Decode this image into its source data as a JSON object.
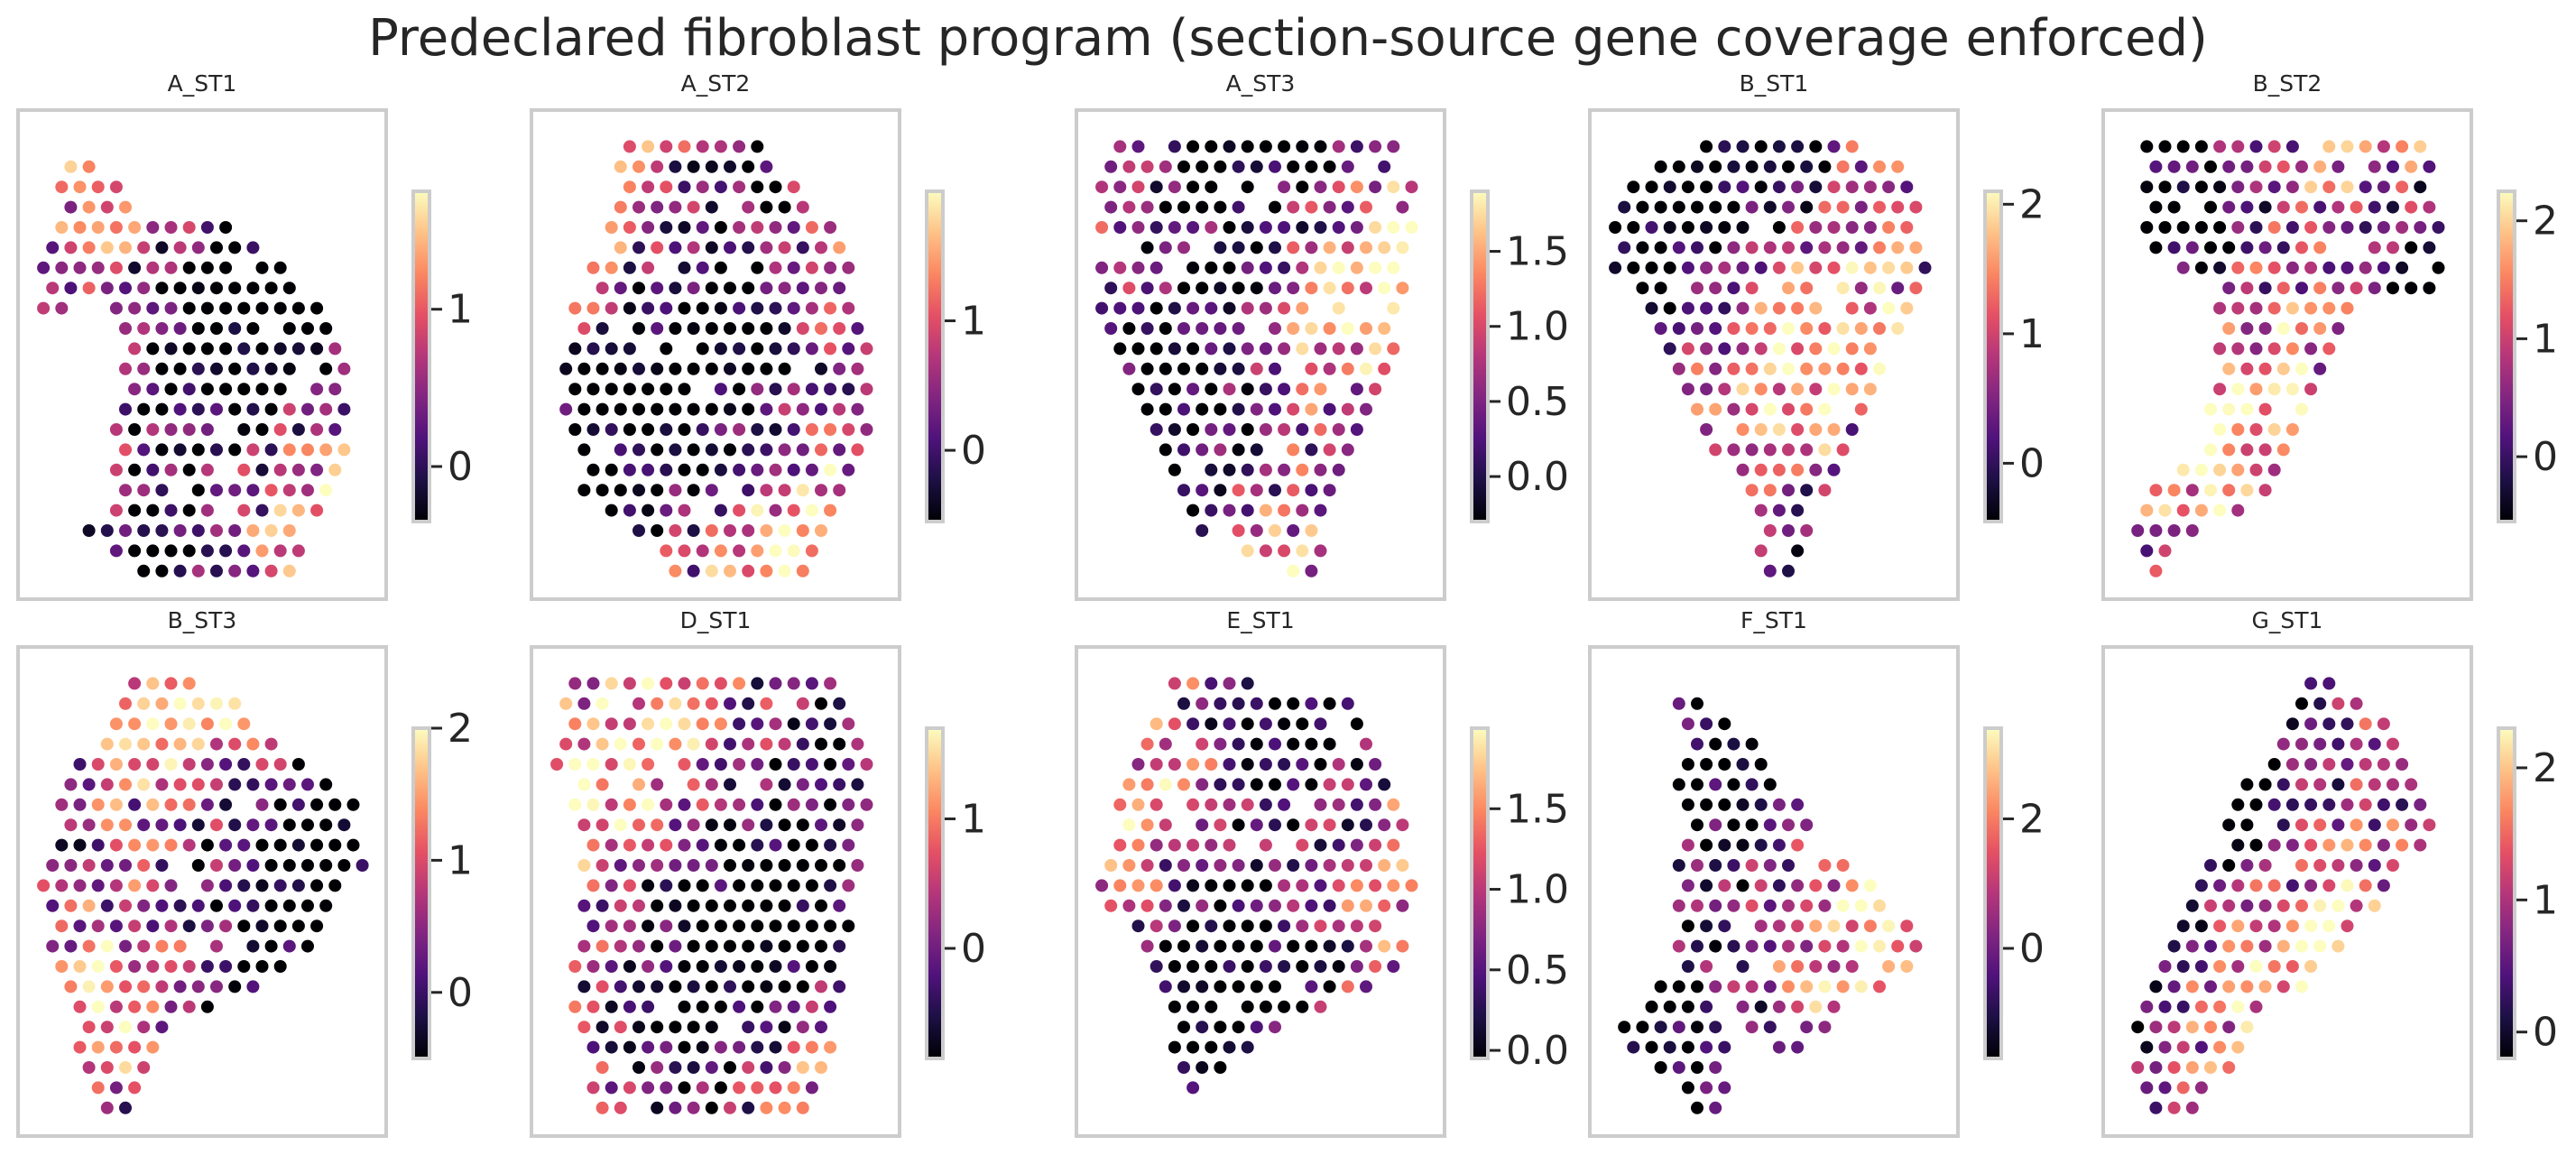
{
  "figure": {
    "title": "Predeclared fibroblast program (section-source gene coverage enforced)"
  },
  "colormap": {
    "name": "magma",
    "stops": [
      "#000004",
      "#1c1044",
      "#4f127b",
      "#812581",
      "#b5367a",
      "#e55064",
      "#fb8761",
      "#fec287",
      "#fcfdbf"
    ]
  },
  "chart_data": [
    {
      "type": "scatter",
      "title": "A_ST1",
      "shape": "A_ST1",
      "clim": [
        -0.35,
        1.75
      ],
      "colorbar_ticks": [
        {
          "value": 0,
          "label": "0"
        },
        {
          "value": 1,
          "label": "1"
        }
      ]
    },
    {
      "type": "scatter",
      "title": "A_ST2",
      "shape": "A_ST2",
      "clim": [
        -0.55,
        2.0
      ],
      "colorbar_ticks": [
        {
          "value": 0,
          "label": "0"
        },
        {
          "value": 1,
          "label": "1"
        }
      ]
    },
    {
      "type": "scatter",
      "title": "A_ST3",
      "shape": "A_ST3",
      "clim": [
        -0.3,
        1.9
      ],
      "colorbar_ticks": [
        {
          "value": 0,
          "label": "0.0"
        },
        {
          "value": 0.5,
          "label": "0.5"
        },
        {
          "value": 1.0,
          "label": "1.0"
        },
        {
          "value": 1.5,
          "label": "1.5"
        }
      ]
    },
    {
      "type": "scatter",
      "title": "B_ST1",
      "shape": "B_ST1",
      "clim": [
        -0.45,
        2.1
      ],
      "colorbar_ticks": [
        {
          "value": 0,
          "label": "0"
        },
        {
          "value": 1,
          "label": "1"
        },
        {
          "value": 2,
          "label": "2"
        }
      ]
    },
    {
      "type": "scatter",
      "title": "B_ST2",
      "shape": "B_ST2",
      "clim": [
        -0.55,
        2.25
      ],
      "colorbar_ticks": [
        {
          "value": 0,
          "label": "0"
        },
        {
          "value": 1,
          "label": "1"
        },
        {
          "value": 2,
          "label": "2"
        }
      ]
    },
    {
      "type": "scatter",
      "title": "B_ST3",
      "shape": "B_ST3",
      "clim": [
        -0.5,
        2.0
      ],
      "colorbar_ticks": [
        {
          "value": 0,
          "label": "0"
        },
        {
          "value": 1,
          "label": "1"
        },
        {
          "value": 2,
          "label": "2"
        }
      ]
    },
    {
      "type": "scatter",
      "title": "D_ST1",
      "shape": "D_ST1",
      "clim": [
        -0.85,
        1.7
      ],
      "colorbar_ticks": [
        {
          "value": 0,
          "label": "0"
        },
        {
          "value": 1,
          "label": "1"
        }
      ]
    },
    {
      "type": "scatter",
      "title": "E_ST1",
      "shape": "E_ST1",
      "clim": [
        -0.05,
        2.0
      ],
      "colorbar_ticks": [
        {
          "value": 0,
          "label": "0.0"
        },
        {
          "value": 0.5,
          "label": "0.5"
        },
        {
          "value": 1.0,
          "label": "1.0"
        },
        {
          "value": 1.5,
          "label": "1.5"
        }
      ]
    },
    {
      "type": "scatter",
      "title": "F_ST1",
      "shape": "F_ST1",
      "clim": [
        -1.7,
        3.4
      ],
      "colorbar_ticks": [
        {
          "value": 0,
          "label": "0"
        },
        {
          "value": 2,
          "label": "2"
        }
      ]
    },
    {
      "type": "scatter",
      "title": "G_ST1",
      "shape": "G_ST1",
      "clim": [
        -0.2,
        2.3
      ],
      "colorbar_ticks": [
        {
          "value": 0,
          "label": "0"
        },
        {
          "value": 1,
          "label": "1"
        },
        {
          "value": 2,
          "label": "2"
        }
      ]
    }
  ]
}
